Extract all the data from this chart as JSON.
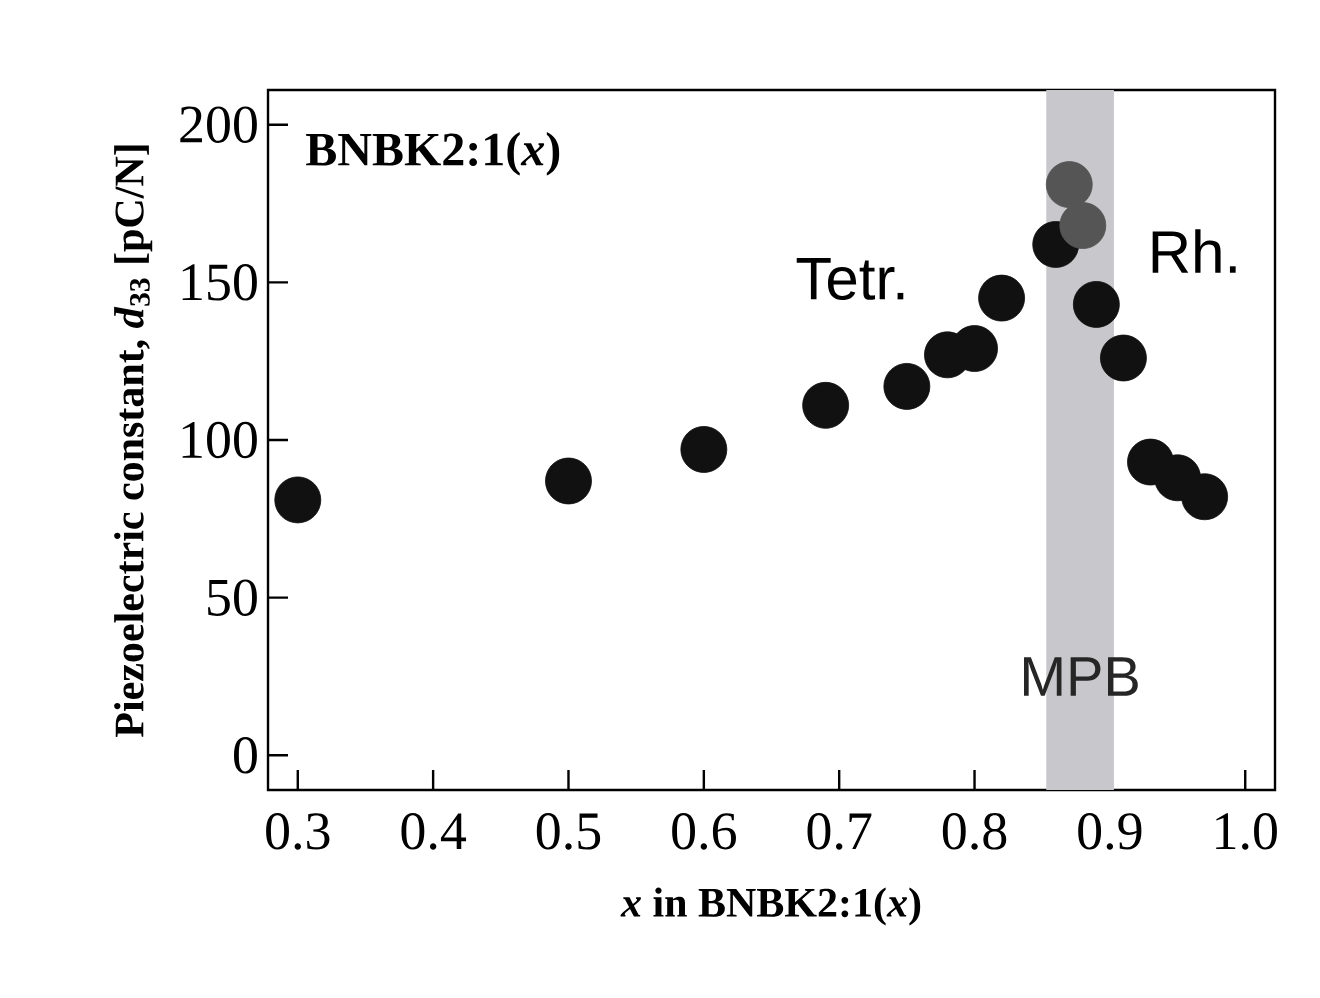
{
  "chart_data": {
    "type": "scatter",
    "title": "BNBK2:1(*x*)",
    "xlabel": "*x* in BNBK2:1(*x*)",
    "ylabel": "Piezoelectric constant, *d*$_{33}$  [pC/N]",
    "x": [
      0.3,
      0.5,
      0.6,
      0.69,
      0.75,
      0.78,
      0.8,
      0.82,
      0.86,
      0.87,
      0.88,
      0.89,
      0.91,
      0.93,
      0.95,
      0.97
    ],
    "values": [
      81,
      87,
      97,
      111,
      117,
      127,
      129,
      145,
      162,
      181,
      168,
      143,
      126,
      93,
      88,
      82
    ],
    "colors": [
      "#111111",
      "#111111",
      "#111111",
      "#111111",
      "#111111",
      "#111111",
      "#111111",
      "#111111",
      "#111111",
      "#555555",
      "#555555",
      "#111111",
      "#111111",
      "#111111",
      "#111111",
      "#111111"
    ],
    "marker": "circle",
    "xlim": [
      0.278,
      1.022
    ],
    "ylim": [
      -11,
      211
    ],
    "xticks": [
      0.3,
      0.4,
      0.5,
      0.6,
      0.7,
      0.8,
      0.9,
      {
        "value": 1.0,
        "label": "1.0"
      }
    ],
    "yticks": [
      0,
      50,
      100,
      150,
      200
    ],
    "bands": [
      {
        "axis": "x",
        "from": 0.853,
        "to": 0.903,
        "label": "MPB",
        "color": "#c8c8cc"
      }
    ],
    "annotations": [
      "Tetr.",
      "Rh."
    ],
    "grid": false
  }
}
